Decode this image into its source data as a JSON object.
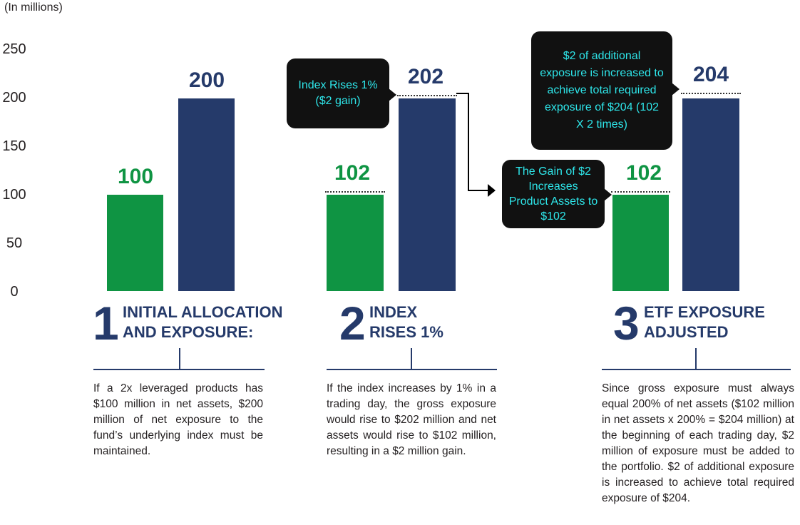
{
  "unit_label": "(In millions)",
  "y_ticks": [
    "250",
    "200",
    "150",
    "100",
    "50",
    "0"
  ],
  "colors": {
    "net_assets": "#0f9443",
    "exposure": "#253a6a",
    "callout_text": "#2ee6ea",
    "callout_bg": "#111111"
  },
  "chart_data": {
    "type": "bar",
    "ylim": [
      0,
      250
    ],
    "groups": [
      {
        "bars": [
          {
            "value": 100,
            "label": "100",
            "color": "green"
          },
          {
            "value": 200,
            "label": "200",
            "color": "navy"
          }
        ]
      },
      {
        "bars": [
          {
            "value": 100,
            "label": "102",
            "color": "green",
            "dotted_value": 102
          },
          {
            "value": 200,
            "label": "202",
            "color": "navy",
            "dotted_value": 202
          }
        ]
      },
      {
        "bars": [
          {
            "value": 100,
            "label": "102",
            "color": "green",
            "dotted_value": 102
          },
          {
            "value": 200,
            "label": "204",
            "color": "navy",
            "dotted_value": 204
          }
        ]
      }
    ]
  },
  "callouts": {
    "index_rises": "Index Rises 1% ($2 gain)",
    "gain": "The Gain of $2 Increases Product Assets to $102",
    "additional": "$2 of additional exposure is increased to achieve total required exposure of $204 (102 X 2 times)"
  },
  "steps": [
    {
      "number": "1",
      "title_line1": "INITIAL ALLOCATION",
      "title_line2": "AND EXPOSURE:",
      "description": "If a 2x leveraged products has $100 million in net assets, $200 million of net exposure to the fund’s underlying index must be maintained."
    },
    {
      "number": "2",
      "title_line1": "INDEX",
      "title_line2": "RISES 1%",
      "description": "If the index increases by 1% in a trading day, the gross exposure would rise to $202 million and net assets would rise to $102 million, resulting in a $2 million gain."
    },
    {
      "number": "3",
      "title_line1": "ETF EXPOSURE",
      "title_line2": "ADJUSTED",
      "description": "Since gross exposure must always equal 200% of net assets ($102 million in net assets x 200% = $204 million) at the beginning of each trading day, $2 million of exposure must be added to the portfolio. $2 of additional exposure is increased to achieve total required exposure of $204."
    }
  ]
}
